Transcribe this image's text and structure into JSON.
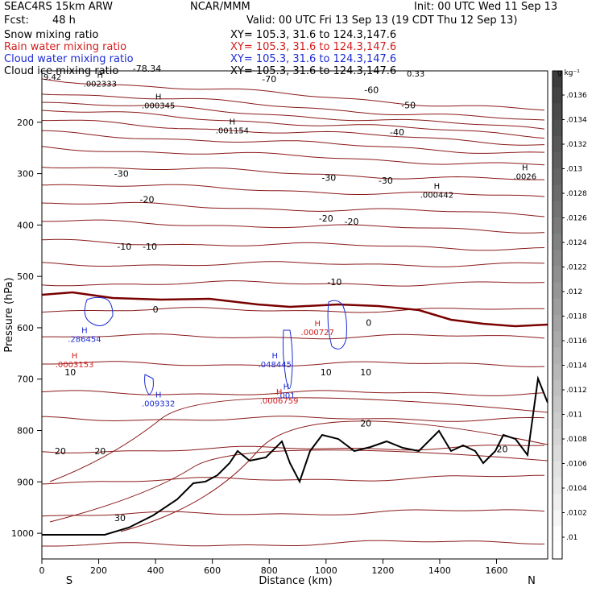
{
  "header": {
    "model": "SEAC4RS 15km ARW",
    "org": "NCAR/MMM",
    "init": "Init: 00 UTC Wed 11 Sep 13",
    "fcst_label": "Fcst:",
    "fcst_value": "48 h",
    "valid": "Valid: 00 UTC Fri 13 Sep 13 (19 CDT Thu 12 Sep 13)"
  },
  "legend": [
    {
      "label": "Snow mixing ratio",
      "xy": "XY= 105.3, 31.6 to 124.3,147.6",
      "color": "#000000"
    },
    {
      "label": "Rain water mixing ratio",
      "xy": "XY= 105.3, 31.6 to 124.3,147.6",
      "color": "#d41c1c"
    },
    {
      "label": "Cloud water mixing ratio",
      "xy": "XY= 105.3, 31.6 to 124.3,147.6",
      "color": "#1c2bd4"
    },
    {
      "label": "Cloud ice mixing ratio",
      "xy": "XY= 105.3, 31.6 to 124.3,147.6",
      "color": "#000000"
    }
  ],
  "chart_data": {
    "type": "cross-section",
    "xlabel": "Distance (km)",
    "ylabel": "Pressure (hPa)",
    "xlim": [
      0,
      1780
    ],
    "ylim": [
      1050,
      100
    ],
    "x_ticks": [
      0,
      200,
      400,
      600,
      800,
      1000,
      1200,
      1400,
      1600
    ],
    "y_ticks": [
      200,
      300,
      400,
      500,
      600,
      700,
      800,
      900,
      1000
    ],
    "x_ends": {
      "left": "S",
      "right": "N"
    },
    "temperature_contour_labels": [
      {
        "value": "-78.34",
        "x": 370,
        "p": 95
      },
      {
        "value": "-70",
        "x": 800,
        "p": 116
      },
      {
        "value": "-60",
        "x": 1160,
        "p": 137
      },
      {
        "value": "-50",
        "x": 1290,
        "p": 167
      },
      {
        "value": "-40",
        "x": 1250,
        "p": 219
      },
      {
        "value": "-30",
        "x": 280,
        "p": 300
      },
      {
        "value": "-30",
        "x": 1010,
        "p": 308
      },
      {
        "value": "-30",
        "x": 1210,
        "p": 313
      },
      {
        "value": "-20",
        "x": 370,
        "p": 350
      },
      {
        "value": "-20",
        "x": 1000,
        "p": 387
      },
      {
        "value": "-20",
        "x": 1090,
        "p": 393
      },
      {
        "value": "-10",
        "x": 290,
        "p": 442
      },
      {
        "value": "-10",
        "x": 380,
        "p": 442
      },
      {
        "value": "-10",
        "x": 1030,
        "p": 511
      },
      {
        "value": "0",
        "x": 400,
        "p": 564
      },
      {
        "value": "0",
        "x": 1150,
        "p": 590
      },
      {
        "value": "10",
        "x": 100,
        "p": 686
      },
      {
        "value": "10",
        "x": 1000,
        "p": 686
      },
      {
        "value": "10",
        "x": 1140,
        "p": 686
      },
      {
        "value": "20",
        "x": 1140,
        "p": 786
      },
      {
        "value": "20",
        "x": 65,
        "p": 840
      },
      {
        "value": "20",
        "x": 205,
        "p": 840
      },
      {
        "value": "20",
        "x": 1620,
        "p": 836
      },
      {
        "value": "30",
        "x": 275,
        "p": 970
      }
    ],
    "maxima_labels": [
      {
        "mark": "H",
        "value": ".002333",
        "x": 205,
        "p": 118,
        "color": "#000000"
      },
      {
        "mark": "H",
        "value": ".000345",
        "x": 410,
        "p": 160,
        "color": "#000000"
      },
      {
        "mark": "H",
        "value": ".001154",
        "x": 670,
        "p": 209,
        "color": "#000000"
      },
      {
        "mark": "H",
        "value": ".000442",
        "x": 1390,
        "p": 334,
        "color": "#000000"
      },
      {
        "mark": "H",
        "value": ".0026",
        "x": 1700,
        "p": 298,
        "color": "#000000"
      },
      {
        "mark": "H",
        "value": ".286454",
        "x": 150,
        "p": 615,
        "color": "#1c2bd4"
      },
      {
        "mark": "H",
        "value": ".0003153",
        "x": 115,
        "p": 664,
        "color": "#d41c1c"
      },
      {
        "mark": "H",
        "value": ".009332",
        "x": 410,
        "p": 740,
        "color": "#1c2bd4"
      },
      {
        "mark": "H",
        "value": ".048445",
        "x": 820,
        "p": 664,
        "color": "#1c2bd4"
      },
      {
        "mark": "H",
        "value": ".001",
        "x": 860,
        "p": 725,
        "color": "#1c2bd4"
      },
      {
        "mark": "H",
        "value": ".0006759",
        "x": 835,
        "p": 735,
        "color": "#d41c1c"
      },
      {
        "mark": "H",
        "value": ".000727",
        "x": 970,
        "p": 602,
        "color": "#d41c1c"
      }
    ],
    "corner_fragments": [
      "9.42",
      "0.33"
    ],
    "colorbar": {
      "unit": "g kg⁻¹",
      "ticks": [
        ".0136",
        ".0134",
        ".0132",
        ".013",
        ".0128",
        ".0126",
        ".0124",
        ".0122",
        ".012",
        ".0118",
        ".0116",
        ".0114",
        ".0112",
        ".011",
        ".0108",
        ".0106",
        ".0104",
        ".0102",
        ".01"
      ]
    },
    "colors": {
      "contour": "#8b1a1a",
      "freezing": "#7a0000",
      "terrain": "#000000",
      "cloud_water": "#1c2bd4",
      "rain": "#d41c1c"
    }
  }
}
